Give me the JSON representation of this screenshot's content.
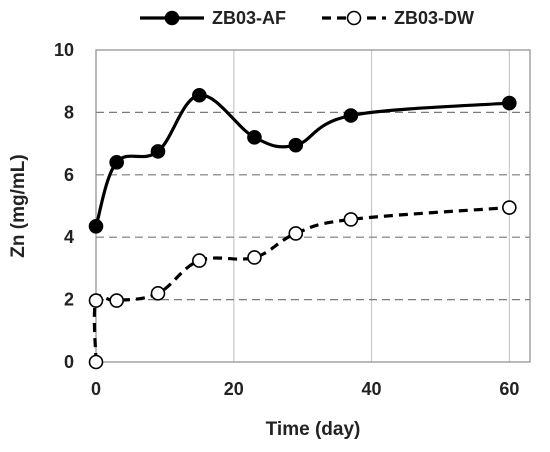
{
  "chart_data": {
    "type": "line",
    "title": "",
    "xlabel": "Time (day)",
    "ylabel": "Zn (mg/mL)",
    "xlim": [
      0,
      63
    ],
    "ylim": [
      0,
      10
    ],
    "x_ticks": [
      0,
      20,
      40,
      60
    ],
    "y_ticks": [
      0,
      2,
      4,
      6,
      8,
      10
    ],
    "vertical_grid": true,
    "horizontal_grid": "dashed",
    "legend_position": "top-center",
    "series": [
      {
        "name": "ZB03-AF",
        "line_style": "solid",
        "marker": "filled-circle",
        "color": "#000000",
        "points": [
          {
            "x": 0,
            "y": 4.35
          },
          {
            "x": 3,
            "y": 6.4
          },
          {
            "x": 9,
            "y": 6.75
          },
          {
            "x": 15,
            "y": 8.55
          },
          {
            "x": 23,
            "y": 7.2
          },
          {
            "x": 29,
            "y": 6.95
          },
          {
            "x": 37,
            "y": 7.9
          },
          {
            "x": 60,
            "y": 8.3
          }
        ]
      },
      {
        "name": "ZB03-DW",
        "line_style": "dashed",
        "marker": "open-circle",
        "color": "#000000",
        "points": [
          {
            "x": 0,
            "y": 0
          },
          {
            "x": 0,
            "y": 1.97
          },
          {
            "x": 3,
            "y": 1.97
          },
          {
            "x": 9,
            "y": 2.2
          },
          {
            "x": 15,
            "y": 3.25
          },
          {
            "x": 23,
            "y": 3.35
          },
          {
            "x": 29,
            "y": 4.12
          },
          {
            "x": 37,
            "y": 4.57
          },
          {
            "x": 60,
            "y": 4.95
          }
        ]
      }
    ]
  }
}
